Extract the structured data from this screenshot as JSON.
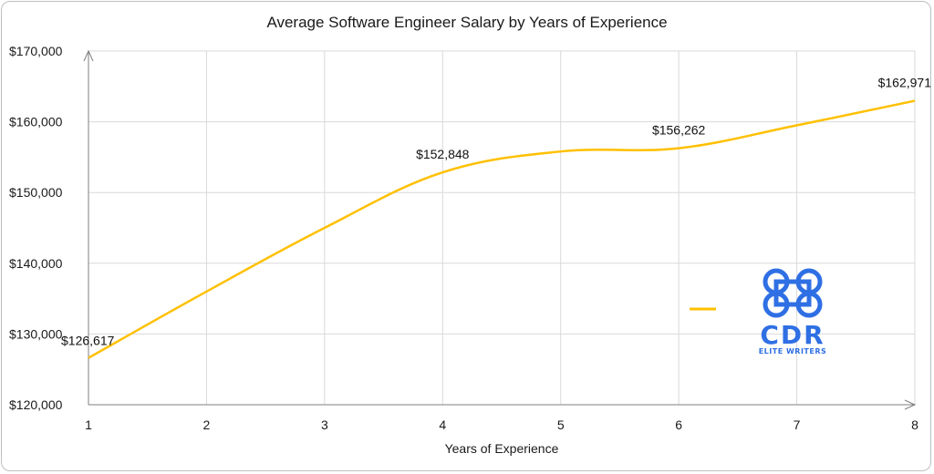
{
  "chart_data": {
    "type": "line",
    "title": "Average Software Engineer Salary by Years of Experience",
    "xlabel": "Years of Experience",
    "ylabel": "",
    "x": [
      1,
      2,
      3,
      4,
      5,
      6,
      7,
      8
    ],
    "xlim": [
      1,
      8
    ],
    "ylim": [
      120000,
      170000
    ],
    "y_ticks": [
      120000,
      130000,
      140000,
      150000,
      160000,
      170000
    ],
    "y_tick_labels": [
      "$120,000",
      "$130,000",
      "$140,000",
      "$150,000",
      "$160,000",
      "$170,000"
    ],
    "x_tick_labels": [
      "1",
      "2",
      "3",
      "4",
      "5",
      "6",
      "7",
      "8"
    ],
    "grid": true,
    "legend": "right",
    "series": [
      {
        "name": "",
        "color": "#FFC000",
        "values": [
          126617,
          136000,
          145000,
          152848,
          155800,
          156262,
          159500,
          162971
        ],
        "data_labels": [
          "$126,617",
          "",
          "",
          "$152,848",
          "",
          "$156,262",
          "",
          "$162,971"
        ]
      }
    ]
  },
  "watermark": {
    "text_main": "CDR",
    "text_sub": "ELITE WRITERS",
    "icon": "cmd-clover-icon",
    "color": "#2F6FE4"
  }
}
